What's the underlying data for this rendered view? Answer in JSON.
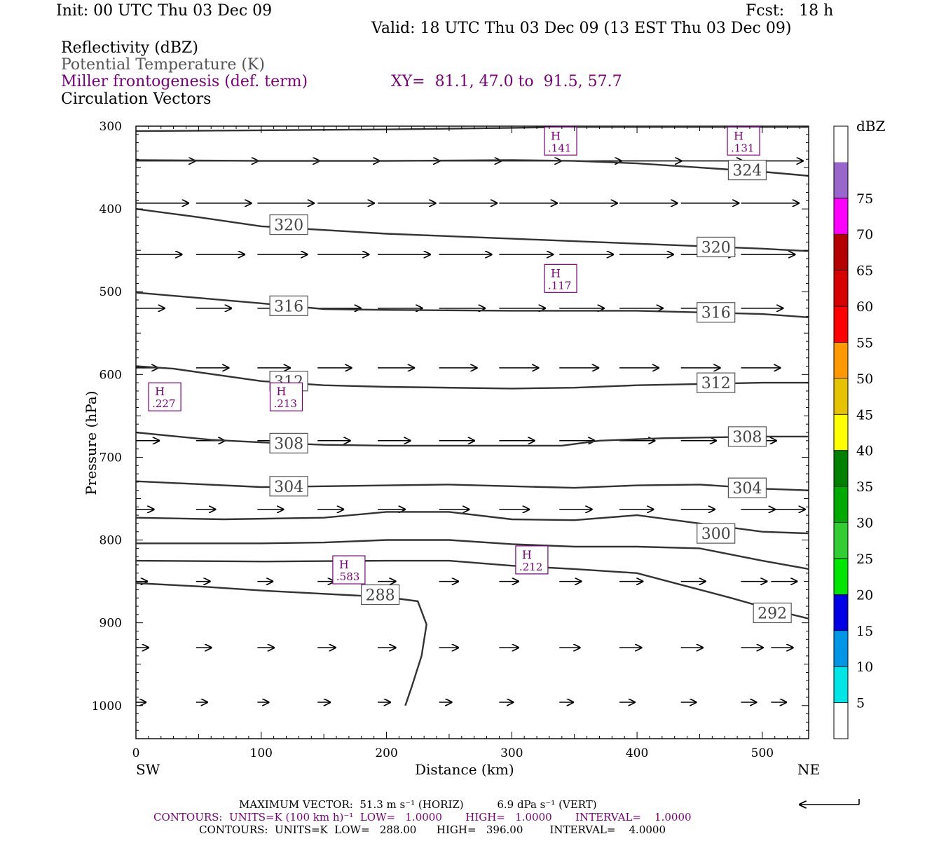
{
  "header": {
    "init": "Init: 00 UTC Thu 03 Dec 09",
    "fcst": "Fcst:   18 h",
    "valid": "Valid: 18 UTC Thu 03 Dec 09 (13 EST Thu 03 Dec 09)",
    "field1": "Reflectivity (dBZ)",
    "field2": "Potential Temperature (K)",
    "field3": "Miller frontogenesis (def. term)",
    "xy": "XY=  81.1, 47.0 to  91.5, 57.7",
    "field4": "Circulation Vectors"
  },
  "footer": {
    "maxvec": "MAXIMUM VECTOR:  51.3 m s⁻¹ (HORIZ)          6.9 dPa s⁻¹ (VERT)",
    "contours1": "CONTOURS:  UNITS=K (100 km h)⁻¹  LOW=   1.0000       HIGH=   1.0000       INTERVAL=    1.0000",
    "contours2": "CONTOURS:  UNITS=K  LOW=   288.00      HIGH=   396.00        INTERVAL=    4.0000"
  },
  "colors": {
    "purple": "#7a007a",
    "contour": "#333333"
  },
  "chart_data": {
    "type": "cross-section",
    "xlabel": "Distance (km)",
    "ylabel": "Pressure (hPa)",
    "x_ticks": [
      0,
      100,
      200,
      300,
      400,
      500
    ],
    "y_ticks": [
      300,
      400,
      500,
      600,
      700,
      800,
      900,
      1000
    ],
    "xlim": [
      0,
      537
    ],
    "ylim": [
      300,
      1040
    ],
    "x_end_labels": {
      "left": "SW",
      "right": "NE"
    },
    "colorbar": {
      "title": "dBZ",
      "labels": [
        "5",
        "10",
        "15",
        "20",
        "25",
        "30",
        "35",
        "40",
        "45",
        "50",
        "55",
        "60",
        "65",
        "70",
        "75"
      ],
      "colors": [
        "#ffffff",
        "#00e5e5",
        "#0096e6",
        "#0000e6",
        "#00e600",
        "#32cd32",
        "#00aa00",
        "#008000",
        "#ffff00",
        "#e6c300",
        "#ff9900",
        "#ff0000",
        "#d70000",
        "#b40000",
        "#ff00ff",
        "#9966cc",
        "#ffffff"
      ]
    },
    "theta_contours": [
      {
        "value": "288",
        "points": [
          [
            0,
            852
          ],
          [
            50,
            856
          ],
          [
            100,
            861
          ],
          [
            150,
            865
          ],
          [
            200,
            869
          ],
          [
            225,
            874
          ],
          [
            232,
            902
          ],
          [
            228,
            940
          ],
          [
            220,
            978
          ],
          [
            215,
            1000
          ]
        ]
      },
      {
        "value": "292",
        "points": [
          [
            0,
            825
          ],
          [
            100,
            826
          ],
          [
            200,
            825
          ],
          [
            250,
            825
          ],
          [
            300,
            831
          ],
          [
            350,
            835
          ],
          [
            400,
            840
          ],
          [
            440,
            856
          ],
          [
            475,
            870
          ],
          [
            510,
            885
          ],
          [
            537,
            895
          ]
        ]
      },
      {
        "value": "296",
        "points": [
          [
            0,
            804
          ],
          [
            100,
            804
          ],
          [
            150,
            803
          ],
          [
            200,
            800
          ],
          [
            250,
            800
          ],
          [
            300,
            805
          ],
          [
            350,
            808
          ],
          [
            400,
            808
          ],
          [
            450,
            810
          ],
          [
            500,
            825
          ],
          [
            537,
            835
          ]
        ]
      },
      {
        "value": "300",
        "points": [
          [
            0,
            773
          ],
          [
            70,
            775
          ],
          [
            150,
            773
          ],
          [
            200,
            766
          ],
          [
            250,
            766
          ],
          [
            300,
            775
          ],
          [
            350,
            776
          ],
          [
            400,
            770
          ],
          [
            450,
            780
          ],
          [
            500,
            790
          ],
          [
            537,
            792
          ]
        ]
      },
      {
        "value": "304",
        "points": [
          [
            0,
            729
          ],
          [
            100,
            736
          ],
          [
            200,
            734
          ],
          [
            250,
            733
          ],
          [
            300,
            735
          ],
          [
            350,
            737
          ],
          [
            400,
            734
          ],
          [
            450,
            733
          ],
          [
            500,
            738
          ],
          [
            537,
            740
          ]
        ]
      },
      {
        "value": "308",
        "points": [
          [
            0,
            670
          ],
          [
            60,
            679
          ],
          [
            100,
            682
          ],
          [
            150,
            685
          ],
          [
            200,
            686
          ],
          [
            300,
            686
          ],
          [
            340,
            686
          ],
          [
            370,
            680
          ],
          [
            420,
            677
          ],
          [
            500,
            675
          ],
          [
            537,
            675
          ]
        ]
      },
      {
        "value": "312",
        "points": [
          [
            0,
            590
          ],
          [
            30,
            593
          ],
          [
            100,
            608
          ],
          [
            150,
            613
          ],
          [
            200,
            615
          ],
          [
            300,
            617
          ],
          [
            350,
            616
          ],
          [
            400,
            613
          ],
          [
            500,
            610
          ],
          [
            537,
            610
          ]
        ]
      },
      {
        "value": "316",
        "points": [
          [
            0,
            501
          ],
          [
            100,
            514
          ],
          [
            150,
            521
          ],
          [
            200,
            522
          ],
          [
            300,
            523
          ],
          [
            400,
            523
          ],
          [
            500,
            527
          ],
          [
            537,
            531
          ]
        ]
      },
      {
        "value": "320",
        "points": [
          [
            0,
            400
          ],
          [
            50,
            410
          ],
          [
            100,
            421
          ],
          [
            200,
            430
          ],
          [
            300,
            436
          ],
          [
            400,
            442
          ],
          [
            500,
            448
          ],
          [
            537,
            451
          ]
        ]
      },
      {
        "value": "324",
        "points": [
          [
            0,
            341
          ],
          [
            100,
            342
          ],
          [
            200,
            342
          ],
          [
            300,
            341
          ],
          [
            350,
            342
          ],
          [
            400,
            345
          ],
          [
            450,
            350
          ],
          [
            500,
            355
          ],
          [
            537,
            360
          ]
        ]
      },
      {
        "value": "328",
        "points": [
          [
            0,
            306
          ],
          [
            100,
            305
          ],
          [
            200,
            304
          ],
          [
            300,
            302
          ],
          [
            350,
            301
          ],
          [
            537,
            301
          ]
        ]
      }
    ],
    "theta_labels": [
      {
        "text": "324",
        "x": 488,
        "p": 353
      },
      {
        "text": "320",
        "x": 122,
        "p": 419
      },
      {
        "text": "320",
        "x": 463,
        "p": 446
      },
      {
        "text": "316",
        "x": 122,
        "p": 517
      },
      {
        "text": "316",
        "x": 463,
        "p": 525
      },
      {
        "text": "312",
        "x": 122,
        "p": 608
      },
      {
        "text": "312",
        "x": 463,
        "p": 610
      },
      {
        "text": "308",
        "x": 488,
        "p": 675
      },
      {
        "text": "308",
        "x": 122,
        "p": 683
      },
      {
        "text": "304",
        "x": 122,
        "p": 735
      },
      {
        "text": "304",
        "x": 488,
        "p": 737
      },
      {
        "text": "300",
        "x": 463,
        "p": 792
      },
      {
        "text": "288",
        "x": 195,
        "p": 866
      },
      {
        "text": "292",
        "x": 508,
        "p": 888
      }
    ],
    "frontogenesis_highs": [
      {
        "label": "H",
        "value": ".141",
        "x": 339,
        "p": 318
      },
      {
        "label": "H",
        "value": ".131",
        "x": 485,
        "p": 318
      },
      {
        "label": "H",
        "value": ".117",
        "x": 339,
        "p": 484
      },
      {
        "label": "H",
        "value": ".227",
        "x": 23,
        "p": 627
      },
      {
        "label": "H",
        "value": ".213",
        "x": 120,
        "p": 627
      },
      {
        "label": "H",
        "value": ".583",
        "x": 170,
        "p": 836
      },
      {
        "label": "H",
        "value": ".212",
        "x": 316,
        "p": 824
      }
    ],
    "vector_rows": [
      {
        "p": 342,
        "u": [
          45,
          47,
          47,
          47,
          47,
          47,
          47,
          47,
          47,
          47,
          47,
          47,
          47
        ],
        "w": [
          0,
          0,
          0,
          0,
          0,
          0,
          0,
          0,
          0,
          0,
          0,
          0,
          0
        ]
      },
      {
        "p": 393,
        "u": [
          40,
          42,
          43,
          43,
          44,
          44,
          44,
          44,
          44,
          44,
          44,
          44,
          44
        ],
        "w": [
          0,
          0,
          0,
          0,
          0,
          0,
          0,
          0,
          0,
          0,
          0,
          0,
          0
        ]
      },
      {
        "p": 455,
        "u": [
          35,
          37,
          38,
          39,
          40,
          40,
          41,
          41,
          41,
          41,
          41,
          41,
          41
        ],
        "w": [
          0,
          0,
          0,
          0,
          0,
          0,
          0,
          0,
          0,
          0,
          0,
          0,
          0
        ]
      },
      {
        "p": 520,
        "u": [
          22,
          27,
          30,
          33,
          34,
          35,
          35,
          34,
          33,
          33,
          32,
          32,
          32
        ],
        "w": [
          0,
          0,
          0,
          0,
          0,
          0,
          0,
          0,
          0,
          0,
          0,
          0,
          0
        ]
      },
      {
        "p": 592,
        "u": [
          17,
          25,
          25,
          26,
          28,
          29,
          30,
          30,
          30,
          30,
          30,
          30,
          30
        ],
        "w": [
          0,
          0,
          0,
          0,
          0,
          0,
          0,
          0,
          0,
          0,
          0,
          0,
          0
        ]
      },
      {
        "p": 680,
        "u": [
          18,
          22,
          25,
          25,
          25,
          27,
          27,
          27,
          27,
          27,
          27,
          30,
          30
        ],
        "w": [
          0,
          0,
          0,
          0,
          0,
          0,
          0,
          0,
          0,
          0,
          0,
          0,
          0
        ]
      },
      {
        "p": 763,
        "u": [
          14,
          15,
          20,
          20,
          21,
          23,
          23,
          25,
          26,
          26,
          26,
          26,
          26
        ],
        "w": [
          0,
          0,
          0,
          0,
          0,
          0,
          0,
          0,
          0,
          0,
          0,
          0,
          0
        ]
      },
      {
        "p": 850,
        "u": [
          9,
          11,
          12,
          13,
          14,
          15,
          15,
          17,
          18,
          19,
          20,
          20,
          20
        ],
        "w": [
          0,
          0,
          0,
          0,
          0,
          0,
          0,
          0,
          0,
          0,
          0,
          0,
          0
        ]
      },
      {
        "p": 930,
        "u": [
          10,
          12,
          13,
          14,
          14,
          15,
          15,
          16,
          17,
          17,
          17,
          17,
          17
        ],
        "w": [
          0,
          0,
          0,
          0,
          0,
          0,
          0,
          0,
          0,
          0,
          0,
          0,
          0
        ]
      },
      {
        "p": 996,
        "u": [
          8,
          9,
          9,
          10,
          10,
          10,
          11,
          11,
          12,
          12,
          12,
          12,
          12
        ],
        "w": [
          0,
          0,
          0,
          0,
          0,
          0,
          0,
          0,
          0,
          0,
          0,
          0,
          0
        ]
      }
    ],
    "vector_x": [
      0,
      48,
      97,
      145,
      193,
      242,
      290,
      338,
      386,
      435,
      483,
      507,
      531
    ]
  }
}
